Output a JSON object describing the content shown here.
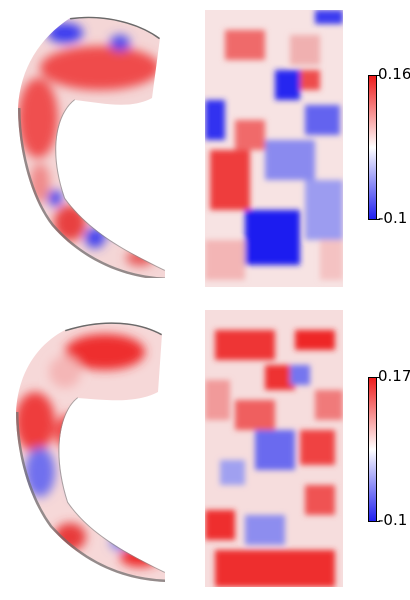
{
  "colors": {
    "positive": "#ee1c1c",
    "neutral": "#ffffff",
    "negative": "#1f1fee",
    "shade": "#5b5b5b"
  },
  "panels": [
    {
      "name": "top",
      "colorbar": {
        "max_label": "0.16",
        "min_label": "-0.1"
      }
    },
    {
      "name": "bottom",
      "colorbar": {
        "max_label": "0.17",
        "min_label": "-0.1"
      }
    }
  ]
}
